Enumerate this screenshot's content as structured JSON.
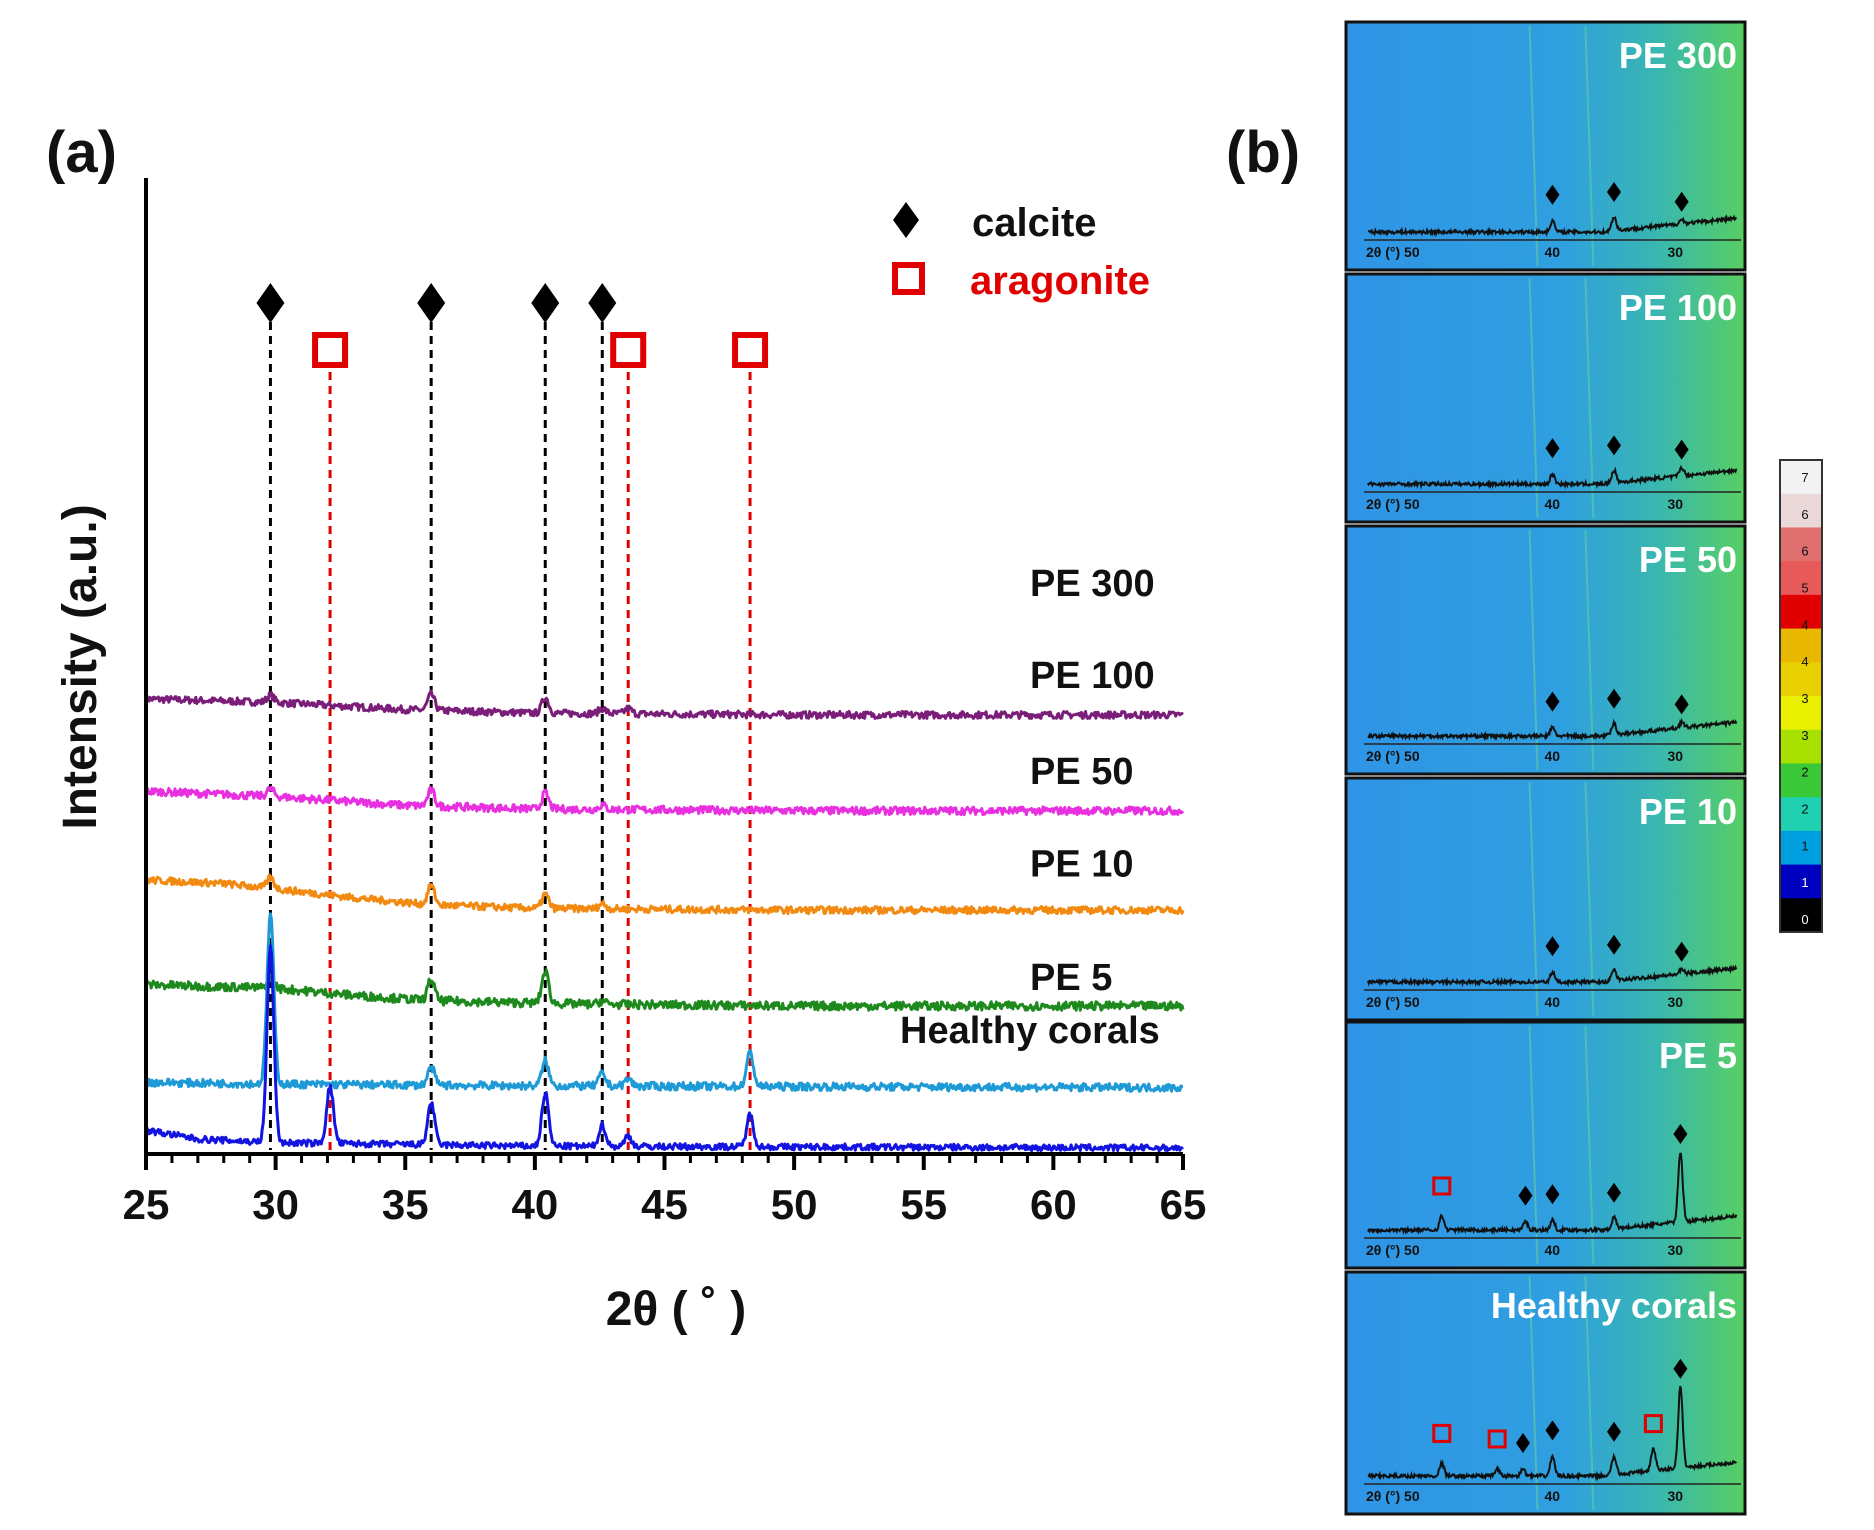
{
  "panel_a": {
    "label": "(a)",
    "xlabel": "2θ ( ˚ )",
    "ylabel": "Intensity (a.u.)"
  },
  "panel_b": {
    "label": "(b)"
  },
  "legend": {
    "calcite": "calcite",
    "aragonite": "aragonite"
  },
  "colors": {
    "calcite_marker": "#000000",
    "aragonite_marker": "#e00000",
    "calcite_line": "#000000",
    "aragonite_line": "#e00000",
    "panel_b_background": "#2f9be3",
    "panel_b_high_angle_glow": "#5fd05a"
  },
  "chart_data": [
    {
      "type": "line",
      "xlabel": "2θ ( ˚ )",
      "ylabel": "Intensity (a.u.)",
      "xlim": [
        25,
        65
      ],
      "x_ticks": [
        25,
        30,
        35,
        40,
        45,
        50,
        55,
        60,
        65
      ],
      "y_ticks_shown": false,
      "calcite_peaks": [
        29.8,
        36.0,
        40.4,
        42.6
      ],
      "aragonite_peaks": [
        32.1,
        43.6,
        48.3
      ],
      "series": [
        {
          "name": "PE 300",
          "color": "#7b1e7a",
          "offset": 12.2,
          "noise": 0.1,
          "background": [
            [
              25,
              0.45
            ],
            [
              30,
              0.35
            ],
            [
              35,
              0.15
            ],
            [
              40,
              0.05
            ],
            [
              50,
              0.0
            ],
            [
              65,
              0.0
            ]
          ],
          "peaks": [
            [
              29.8,
              0.2
            ],
            [
              36.0,
              0.45
            ],
            [
              40.4,
              0.45
            ],
            [
              42.6,
              0.15
            ],
            [
              43.6,
              0.15
            ]
          ]
        },
        {
          "name": "PE 100",
          "color": "#e830e0",
          "offset": 9.5,
          "noise": 0.11,
          "background": [
            [
              25,
              0.55
            ],
            [
              30,
              0.4
            ],
            [
              35,
              0.15
            ],
            [
              40,
              0.05
            ],
            [
              50,
              0.0
            ],
            [
              65,
              0.0
            ]
          ],
          "peaks": [
            [
              29.8,
              0.2
            ],
            [
              36.0,
              0.45
            ],
            [
              40.4,
              0.45
            ],
            [
              42.6,
              0.12
            ]
          ]
        },
        {
          "name": "PE 50",
          "color": "#f28a12",
          "offset": 6.7,
          "noise": 0.1,
          "background": [
            [
              25,
              0.85
            ],
            [
              28,
              0.75
            ],
            [
              30,
              0.6
            ],
            [
              33,
              0.35
            ],
            [
              36,
              0.15
            ],
            [
              40,
              0.05
            ],
            [
              50,
              0.0
            ],
            [
              65,
              0.0
            ]
          ],
          "peaks": [
            [
              29.8,
              0.3
            ],
            [
              36.0,
              0.55
            ],
            [
              40.4,
              0.4
            ],
            [
              42.6,
              0.15
            ]
          ]
        },
        {
          "name": "PE 10",
          "color": "#1e8a1e",
          "offset": 4.0,
          "noise": 0.12,
          "background": [
            [
              25,
              0.6
            ],
            [
              30,
              0.5
            ],
            [
              33,
              0.3
            ],
            [
              36,
              0.15
            ],
            [
              42,
              0.05
            ],
            [
              50,
              0.0
            ],
            [
              65,
              0.0
            ]
          ],
          "peaks": [
            [
              29.8,
              0.3
            ],
            [
              36.0,
              0.6
            ],
            [
              40.4,
              0.9
            ],
            [
              42.6,
              0.1
            ]
          ]
        },
        {
          "name": "PE 5",
          "color": "#1e9ad6",
          "offset": 1.7,
          "noise": 0.11,
          "background": [
            [
              25,
              0.15
            ],
            [
              30,
              0.1
            ],
            [
              40,
              0.05
            ],
            [
              65,
              0.0
            ]
          ],
          "peaks": [
            [
              29.8,
              4.8
            ],
            [
              36.0,
              0.5
            ],
            [
              40.4,
              0.7
            ],
            [
              42.6,
              0.35
            ],
            [
              43.6,
              0.2
            ],
            [
              48.3,
              0.95
            ]
          ]
        },
        {
          "name": "Healthy corals",
          "color": "#1414e0",
          "offset": 0.0,
          "noise": 0.09,
          "background": [
            [
              25,
              0.5
            ],
            [
              27,
              0.25
            ],
            [
              30,
              0.15
            ],
            [
              40,
              0.05
            ],
            [
              65,
              0.0
            ]
          ],
          "peaks": [
            [
              29.8,
              5.5
            ],
            [
              32.1,
              1.6
            ],
            [
              36.0,
              1.2
            ],
            [
              40.4,
              1.5
            ],
            [
              42.6,
              0.6
            ],
            [
              43.6,
              0.3
            ],
            [
              48.3,
              0.9
            ]
          ]
        }
      ],
      "series_labels": [
        {
          "name": "PE 300",
          "y": 14.2
        },
        {
          "name": "PE 100",
          "y": 11.6
        },
        {
          "name": "PE 50",
          "y": 8.9
        },
        {
          "name": "PE 10",
          "y": 6.3
        },
        {
          "name": "PE 5",
          "y": 3.1
        },
        {
          "name": "Healthy corals",
          "y": 1.6
        }
      ]
    },
    {
      "type": "line",
      "panel": "(b)",
      "x_ticks": [
        "2θ (°) 50",
        "40",
        "30"
      ],
      "xlim": [
        25,
        55
      ],
      "sub_plots": [
        {
          "name": "PE 300",
          "calcite_peaks": [
            40,
            35,
            29.5
          ],
          "aragonite_peaks": [],
          "peaks": [
            [
              40,
              0.8
            ],
            [
              35,
              1.0
            ],
            [
              29.5,
              0.3
            ]
          ]
        },
        {
          "name": "PE 100",
          "calcite_peaks": [
            40,
            35,
            29.5
          ],
          "aragonite_peaks": [],
          "peaks": [
            [
              40,
              0.7
            ],
            [
              35,
              0.9
            ],
            [
              29.5,
              0.6
            ]
          ]
        },
        {
          "name": "PE 50",
          "calcite_peaks": [
            40,
            35,
            29.5
          ],
          "aragonite_peaks": [],
          "peaks": [
            [
              40,
              0.6
            ],
            [
              35,
              0.8
            ],
            [
              29.5,
              0.4
            ]
          ]
        },
        {
          "name": "PE 10",
          "calcite_peaks": [
            40,
            35,
            29.5
          ],
          "aragonite_peaks": [],
          "peaks": [
            [
              40,
              0.7
            ],
            [
              35,
              0.8
            ],
            [
              29.5,
              0.3
            ]
          ]
        },
        {
          "name": "PE 5",
          "calcite_peaks": [
            42.2,
            40,
            35,
            29.6
          ],
          "aragonite_peaks": [
            49
          ],
          "peaks": [
            [
              49,
              1.0
            ],
            [
              42.2,
              0.6
            ],
            [
              40,
              0.7
            ],
            [
              35,
              0.8
            ],
            [
              29.6,
              5.0
            ]
          ]
        },
        {
          "name": "Healthy corals",
          "calcite_peaks": [
            42.4,
            40,
            35,
            29.6
          ],
          "aragonite_peaks": [
            49,
            44.5,
            31.8
          ],
          "peaks": [
            [
              49,
              0.9
            ],
            [
              44.5,
              0.5
            ],
            [
              42.4,
              0.5
            ],
            [
              40,
              1.4
            ],
            [
              35,
              1.3
            ],
            [
              31.8,
              1.6
            ],
            [
              29.6,
              5.8
            ]
          ]
        }
      ],
      "colorbar_labels": [
        "7",
        "6",
        "6",
        "5",
        "4",
        "4",
        "3",
        "3",
        "2",
        "2",
        "1",
        "1",
        "0"
      ],
      "colorbar_colors": [
        "#f2f2f2",
        "#ead8d8",
        "#e07070",
        "#e85a5a",
        "#e00000",
        "#e8b800",
        "#e8d000",
        "#e8f000",
        "#a8e000",
        "#38c838",
        "#20d0b0",
        "#00a0e0",
        "#0000c0",
        "#000000"
      ]
    }
  ]
}
